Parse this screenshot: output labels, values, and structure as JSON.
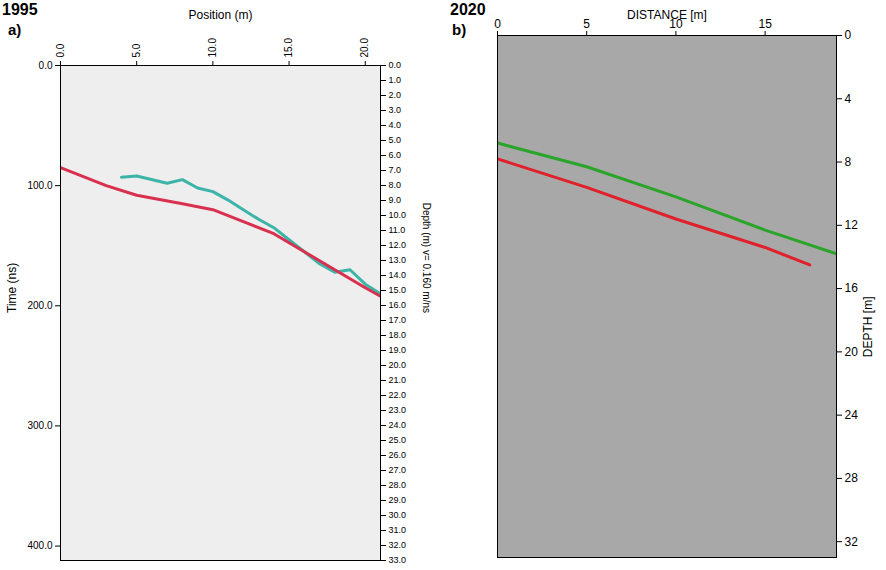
{
  "chart_data": [
    {
      "type": "line",
      "title": "1995",
      "panel_label": "a)",
      "x_label": "Position (m)",
      "y_label": "Time (ns)",
      "y2_label": "Depth (m) v= 0.160 m/ns",
      "xlim": [
        0,
        21
      ],
      "xticks": [
        {
          "value": 0,
          "label": "0.0"
        },
        {
          "value": 5,
          "label": "5.0"
        },
        {
          "value": 10,
          "label": "10.0"
        },
        {
          "value": 15,
          "label": "15.0"
        },
        {
          "value": 20,
          "label": "20.0"
        }
      ],
      "ylim": [
        0,
        412
      ],
      "yticks": [
        {
          "value": 0,
          "label": "0.0"
        },
        {
          "value": 100,
          "label": "100.0"
        },
        {
          "value": 200,
          "label": "200.0"
        },
        {
          "value": 300,
          "label": "300.0"
        },
        {
          "value": 400,
          "label": "400.0"
        }
      ],
      "y2lim": [
        0,
        33
      ],
      "y2ticks": [
        {
          "value": 0,
          "label": "0.0"
        },
        {
          "value": 1,
          "label": "1.0"
        },
        {
          "value": 2,
          "label": "2.0"
        },
        {
          "value": 3,
          "label": "3.0"
        },
        {
          "value": 4,
          "label": "4.0"
        },
        {
          "value": 5,
          "label": "5.0"
        },
        {
          "value": 6,
          "label": "6.0"
        },
        {
          "value": 7,
          "label": "7.0"
        },
        {
          "value": 8,
          "label": "8.0"
        },
        {
          "value": 9,
          "label": "9.0"
        },
        {
          "value": 10,
          "label": "10.0"
        },
        {
          "value": 11,
          "label": "11.0"
        },
        {
          "value": 12,
          "label": "12.0"
        },
        {
          "value": 13,
          "label": "13.0"
        },
        {
          "value": 14,
          "label": "14.0"
        },
        {
          "value": 15,
          "label": "15.0"
        },
        {
          "value": 16,
          "label": "16.0"
        },
        {
          "value": 17,
          "label": "17.0"
        },
        {
          "value": 18,
          "label": "18.0"
        },
        {
          "value": 19,
          "label": "19.0"
        },
        {
          "value": 20,
          "label": "20.0"
        },
        {
          "value": 21,
          "label": "21.0"
        },
        {
          "value": 22,
          "label": "22.0"
        },
        {
          "value": 23,
          "label": "23.0"
        },
        {
          "value": 24,
          "label": "24.0"
        },
        {
          "value": 25,
          "label": "25.0"
        },
        {
          "value": 26,
          "label": "26.0"
        },
        {
          "value": 27,
          "label": "27.0"
        },
        {
          "value": 28,
          "label": "28.0"
        },
        {
          "value": 29,
          "label": "29.0"
        },
        {
          "value": 30,
          "label": "30.0"
        },
        {
          "value": 31,
          "label": "31.0"
        },
        {
          "value": 32,
          "label": "32.0"
        },
        {
          "value": 33,
          "label": "33.0"
        }
      ],
      "series": [
        {
          "color": "#3cb4a8",
          "x": [
            4,
            5,
            7,
            8,
            9,
            10,
            11,
            12,
            13,
            14,
            15,
            16,
            17,
            18,
            19,
            20,
            21
          ],
          "values": [
            93,
            92,
            98,
            95,
            102,
            105,
            112,
            120,
            128,
            135,
            145,
            155,
            165,
            172,
            170,
            182,
            190
          ]
        },
        {
          "color": "#d9304f",
          "x": [
            0,
            3,
            5,
            8,
            10,
            12,
            14,
            16,
            18,
            20,
            21
          ],
          "values": [
            85,
            100,
            108,
            115,
            120,
            130,
            140,
            155,
            170,
            185,
            192
          ]
        }
      ]
    },
    {
      "type": "line",
      "title": "2020",
      "panel_label": "b)",
      "x_label": "DISTANCE [m]",
      "y_label": "DEPTH [m]",
      "xlim": [
        0,
        19
      ],
      "xticks": [
        0,
        5,
        10,
        15
      ],
      "ylim": [
        0,
        33
      ],
      "yticks": [
        0,
        4,
        8,
        12,
        16,
        20,
        24,
        28,
        32
      ],
      "series": [
        {
          "color": "#2aa52a",
          "x": [
            0,
            5,
            10,
            15,
            19
          ],
          "values": [
            6.8,
            8.3,
            10.2,
            12.3,
            13.8
          ]
        },
        {
          "color": "#e0202a",
          "x": [
            0,
            5,
            10,
            15,
            17.5
          ],
          "values": [
            7.8,
            9.6,
            11.6,
            13.4,
            14.5
          ]
        }
      ]
    }
  ]
}
